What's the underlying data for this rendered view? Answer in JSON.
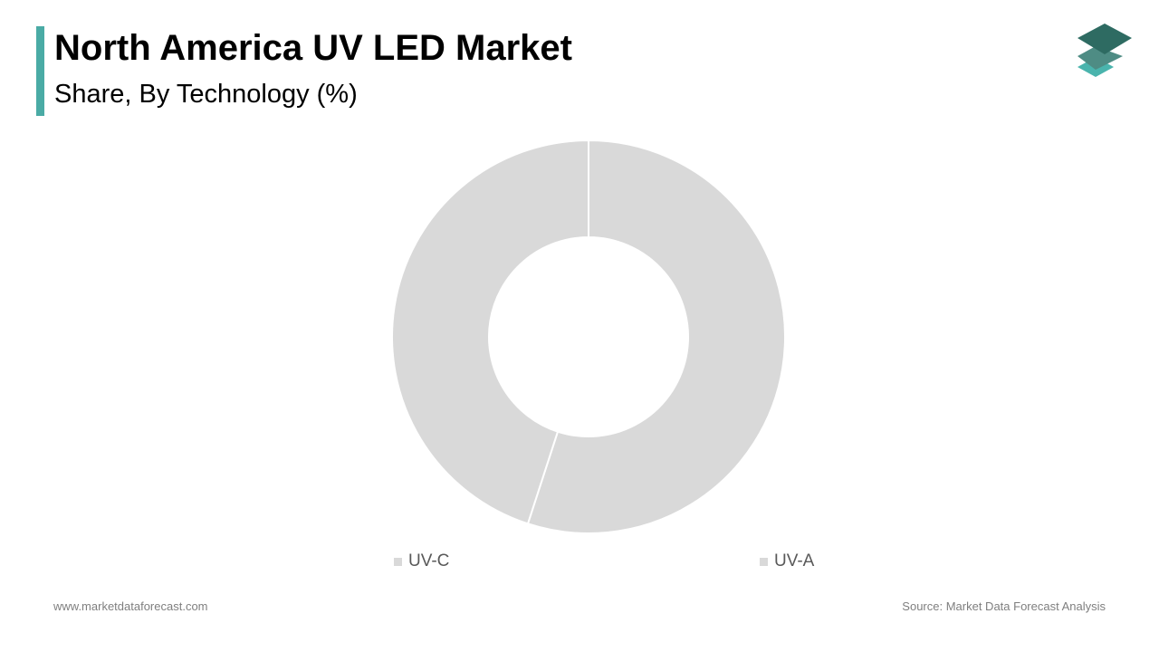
{
  "header": {
    "title": "North America UV LED Market",
    "subtitle": "Share, By Technology (%)"
  },
  "logo": {
    "icon": "stacked-layers-icon",
    "colors": [
      "#2e6b62",
      "#4e8c84",
      "#4ab4ad"
    ]
  },
  "chart_data": {
    "type": "pie",
    "donut": true,
    "categories": [
      "UV-C",
      "UV-A"
    ],
    "values": [
      45,
      55
    ],
    "slice_order": [
      "UV-A",
      "UV-C"
    ],
    "colors": {
      "UV-C": "#d9d9d9",
      "UV-A": "#d9d9d9"
    },
    "start_angle_deg": 0,
    "direction": "clockwise",
    "legend_placement": "bottom"
  },
  "legend": {
    "items": [
      {
        "label": "UV-C",
        "color": "#d9d9d9"
      },
      {
        "label": "UV-A",
        "color": "#d9d9d9"
      }
    ]
  },
  "footer": {
    "website": "www.marketdataforecast.com",
    "source": "Source: Market Data Forecast Analysis"
  },
  "theme": {
    "accent": "#4aaba5"
  }
}
